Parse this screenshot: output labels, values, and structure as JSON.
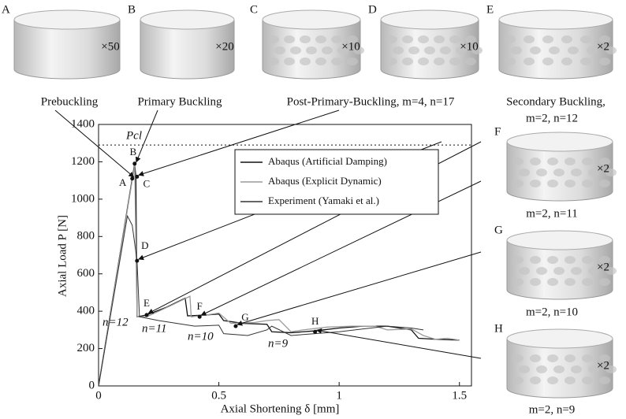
{
  "chart_data": {
    "type": "line",
    "xlabel": "Axial Shortening δ [mm]",
    "ylabel": "Axial Load P [N]",
    "xlim": [
      0,
      1.55
    ],
    "ylim": [
      0,
      1400
    ],
    "xticks": [
      0,
      0.5,
      1,
      1.5
    ],
    "yticks": [
      0,
      200,
      400,
      600,
      800,
      1000,
      1200,
      1400
    ],
    "series": [
      {
        "name": "Abaqus (Artificial Damping)",
        "color": "#111111",
        "x": [
          0,
          0.15,
          0.155,
          0.16,
          0.2,
          0.28,
          0.36,
          0.37,
          0.45,
          0.5,
          0.52,
          0.6,
          0.7,
          0.72,
          0.8,
          0.9,
          1.0,
          1.1,
          1.2,
          1.3,
          1.33,
          1.4,
          1.5
        ],
        "values": [
          0,
          1190,
          1120,
          370,
          380,
          420,
          470,
          375,
          380,
          385,
          350,
          335,
          330,
          290,
          285,
          295,
          310,
          320,
          320,
          300,
          255,
          250,
          245
        ]
      },
      {
        "name": "Abaqus (Explicit Dynamic)",
        "color": "#9a9a9a",
        "x": [
          0,
          0.15,
          0.16,
          0.2,
          0.3,
          0.38,
          0.385,
          0.45,
          0.5,
          0.55,
          0.65,
          0.7,
          0.75,
          0.8,
          0.85,
          0.95,
          1.05,
          1.15,
          1.2,
          1.3,
          1.35,
          1.4,
          1.45,
          1.5
        ],
        "values": [
          0,
          1180,
          370,
          370,
          430,
          480,
          370,
          380,
          390,
          335,
          340,
          350,
          355,
          290,
          300,
          315,
          320,
          320,
          300,
          305,
          270,
          250,
          255,
          245
        ]
      },
      {
        "name": "Experiment (Yamaki et al.)",
        "color": "#333333",
        "x": [
          0,
          0.12,
          0.14,
          0.16,
          0.17,
          0.25,
          0.35,
          0.4,
          0.5,
          0.52,
          0.62,
          0.7,
          0.72,
          0.8,
          0.9,
          1.0,
          1.1,
          1.2,
          1.3,
          1.35
        ],
        "values": [
          0,
          910,
          860,
          670,
          370,
          350,
          330,
          320,
          325,
          280,
          270,
          300,
          320,
          270,
          280,
          290,
          305,
          320,
          310,
          300
        ]
      }
    ],
    "reference_line": {
      "label": "Pcl",
      "value": 1290
    },
    "points": [
      {
        "label": "A",
        "x": 0.14,
        "y": 1110
      },
      {
        "label": "B",
        "x": 0.15,
        "y": 1190
      },
      {
        "label": "C",
        "x": 0.16,
        "y": 1120
      },
      {
        "label": "D",
        "x": 0.16,
        "y": 670
      },
      {
        "label": "E",
        "x": 0.2,
        "y": 380
      },
      {
        "label": "F",
        "x": 0.42,
        "y": 370
      },
      {
        "label": "G",
        "x": 0.57,
        "y": 320
      },
      {
        "label": "H",
        "x": 0.9,
        "y": 290
      }
    ],
    "n_labels": [
      "n=12",
      "n=11",
      "n=10",
      "n=9"
    ]
  },
  "panels": [
    {
      "letter": "A",
      "scale": "×50",
      "caption": "Prebuckling"
    },
    {
      "letter": "B",
      "scale": "×20",
      "caption": "Primary Buckling"
    },
    {
      "letter": "C",
      "scale": "×10",
      "caption": "Post-Primary-Buckling, m=4, n=17"
    },
    {
      "letter": "D",
      "scale": "×10"
    },
    {
      "letter": "E",
      "scale": "×2",
      "caption": "Secondary Buckling,",
      "caption2": "m=2, n=12"
    },
    {
      "letter": "F",
      "scale": "×2",
      "caption": "m=2, n=11"
    },
    {
      "letter": "G",
      "scale": "×2",
      "caption": "m=2, n=10"
    },
    {
      "letter": "H",
      "scale": "×2",
      "caption": "m=2, n=9"
    }
  ]
}
